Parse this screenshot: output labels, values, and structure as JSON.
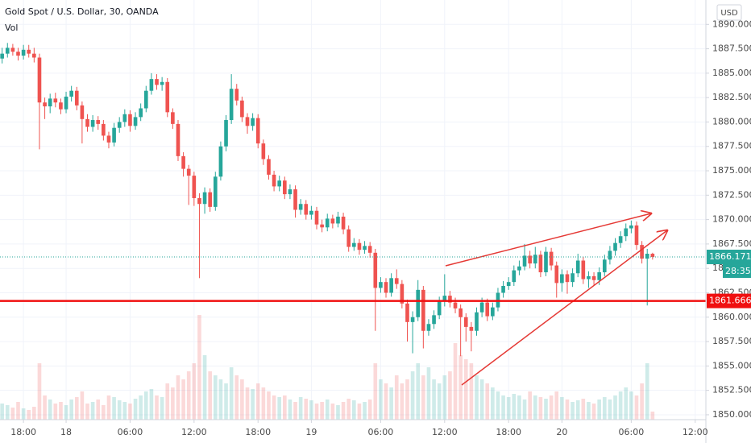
{
  "chart_data": {
    "type": "candlestick",
    "title": "Gold Spot / U.S. Dollar, 30, OANDA",
    "volume_label": "Vol",
    "currency": "USD",
    "up_color": "#26a69a",
    "down_color": "#ef5350",
    "hline": 1861.666,
    "last_price": 1866.171,
    "countdown": "28:35",
    "grid": true,
    "xlim": [
      -4.4,
      128
    ],
    "ylim": [
      1849.5,
      1892.5
    ],
    "xticks": [
      {
        "value": 0,
        "label": "18:00"
      },
      {
        "value": 8,
        "label": "18"
      },
      {
        "value": 20,
        "label": "06:00"
      },
      {
        "value": 32,
        "label": "12:00"
      },
      {
        "value": 44,
        "label": "18:00"
      },
      {
        "value": 54,
        "label": "19"
      },
      {
        "value": 67,
        "label": "06:00"
      },
      {
        "value": 79,
        "label": "12:00"
      },
      {
        "value": 91,
        "label": "18:00"
      },
      {
        "value": 101,
        "label": "20"
      },
      {
        "value": 114,
        "label": "06:00"
      },
      {
        "value": 126,
        "label": "12:00"
      }
    ],
    "yticks": [
      {
        "value": 1850,
        "label": "1850.000"
      },
      {
        "value": 1852.5,
        "label": "1852.500"
      },
      {
        "value": 1855,
        "label": "1855.000"
      },
      {
        "value": 1857.5,
        "label": "1857.500"
      },
      {
        "value": 1860,
        "label": "1860.000"
      },
      {
        "value": 1862.5,
        "label": "1862.500"
      },
      {
        "value": 1865,
        "label": "1865.000"
      },
      {
        "value": 1867.5,
        "label": "1867.500"
      },
      {
        "value": 1870,
        "label": "1870.000"
      },
      {
        "value": 1872.5,
        "label": "1872.500"
      },
      {
        "value": 1875,
        "label": "1875.000"
      },
      {
        "value": 1877.5,
        "label": "1877.500"
      },
      {
        "value": 1880,
        "label": "1880.000"
      },
      {
        "value": 1882.5,
        "label": "1882.500"
      },
      {
        "value": 1885,
        "label": "1885.000"
      },
      {
        "value": 1887.5,
        "label": "1887.500"
      },
      {
        "value": 1890,
        "label": "1890.000"
      }
    ],
    "x": [
      -4,
      -3,
      -2,
      -1,
      0,
      1,
      2,
      3,
      4,
      5,
      6,
      7,
      8,
      9,
      10,
      11,
      12,
      13,
      14,
      15,
      16,
      17,
      18,
      19,
      20,
      21,
      22,
      23,
      24,
      25,
      26,
      27,
      28,
      29,
      30,
      31,
      32,
      33,
      34,
      35,
      36,
      37,
      38,
      39,
      40,
      41,
      42,
      43,
      44,
      45,
      46,
      47,
      48,
      49,
      50,
      51,
      52,
      53,
      54,
      55,
      56,
      57,
      58,
      59,
      60,
      61,
      62,
      63,
      64,
      65,
      66,
      67,
      68,
      69,
      70,
      71,
      72,
      73,
      74,
      75,
      76,
      77,
      78,
      79,
      80,
      81,
      82,
      83,
      84,
      85,
      86,
      87,
      88,
      89,
      90,
      91,
      92,
      93,
      94,
      95,
      96,
      97,
      98,
      99,
      100,
      101,
      102,
      103,
      104,
      105,
      106,
      107,
      108,
      109,
      110,
      111,
      112,
      113,
      114,
      115,
      116,
      117,
      118
    ],
    "open": [
      1886.5,
      1887.0,
      1887.6,
      1887.2,
      1886.8,
      1887.4,
      1887.0,
      1886.6,
      1882.0,
      1881.6,
      1882.4,
      1882.0,
      1881.3,
      1882.6,
      1883.2,
      1881.7,
      1880.3,
      1879.5,
      1880.2,
      1879.8,
      1878.6,
      1877.9,
      1879.4,
      1880.0,
      1880.8,
      1879.6,
      1880.5,
      1881.4,
      1883.2,
      1884.4,
      1883.8,
      1884.1,
      1881.0,
      1879.8,
      1876.5,
      1875.2,
      1874.5,
      1872.2,
      1871.6,
      1872.8,
      1871.3,
      1874.4,
      1877.5,
      1880.2,
      1883.4,
      1882.2,
      1880.5,
      1879.6,
      1880.4,
      1877.8,
      1876.2,
      1874.6,
      1873.4,
      1874.0,
      1872.6,
      1873.1,
      1871.0,
      1871.6,
      1870.5,
      1870.9,
      1869.5,
      1869.2,
      1870.1,
      1869.6,
      1870.3,
      1869.0,
      1867.2,
      1867.6,
      1866.9,
      1867.3,
      1866.6,
      1863.0,
      1863.6,
      1862.5,
      1864.0,
      1863.4,
      1861.4,
      1859.5,
      1860.0,
      1862.8,
      1858.6,
      1859.3,
      1860.2,
      1861.6,
      1862.2,
      1861.5,
      1860.9,
      1860.0,
      1859.0,
      1858.6,
      1860.5,
      1861.5,
      1860.1,
      1861.0,
      1862.5,
      1863.2,
      1863.6,
      1864.8,
      1865.2,
      1866.3,
      1865.5,
      1866.4,
      1864.6,
      1866.7,
      1865.3,
      1863.5,
      1864.4,
      1863.6,
      1864.5,
      1865.8,
      1863.9,
      1864.2,
      1863.8,
      1864.6,
      1865.9,
      1866.8,
      1867.6,
      1868.3,
      1869.1,
      1869.4,
      1867.4,
      1866.0,
      1866.5
    ],
    "high": [
      1887.6,
      1888.1,
      1888.0,
      1887.6,
      1887.9,
      1887.9,
      1887.6,
      1887.0,
      1882.5,
      1882.9,
      1883.0,
      1882.4,
      1883.1,
      1883.7,
      1883.6,
      1882.1,
      1880.8,
      1880.7,
      1880.6,
      1880.2,
      1879.0,
      1879.9,
      1880.5,
      1881.3,
      1881.2,
      1881.0,
      1881.9,
      1883.7,
      1885.0,
      1884.9,
      1884.6,
      1884.5,
      1881.4,
      1880.2,
      1876.9,
      1875.6,
      1874.9,
      1872.7,
      1873.3,
      1873.2,
      1874.9,
      1878.0,
      1880.7,
      1884.9,
      1883.9,
      1882.6,
      1880.9,
      1880.9,
      1880.8,
      1878.2,
      1876.6,
      1875.0,
      1874.5,
      1874.4,
      1873.6,
      1873.5,
      1872.1,
      1872.0,
      1871.4,
      1871.3,
      1870.0,
      1870.6,
      1870.5,
      1870.8,
      1870.7,
      1869.4,
      1868.1,
      1868.0,
      1867.8,
      1867.7,
      1867.0,
      1864.1,
      1864.0,
      1864.5,
      1864.9,
      1863.8,
      1861.8,
      1860.6,
      1863.8,
      1863.2,
      1859.8,
      1860.7,
      1862.1,
      1864.4,
      1862.7,
      1862.0,
      1861.3,
      1860.4,
      1859.5,
      1861.0,
      1862.0,
      1861.9,
      1861.5,
      1863.0,
      1863.7,
      1864.1,
      1865.3,
      1865.8,
      1867.5,
      1866.8,
      1867.2,
      1866.8,
      1867.2,
      1867.1,
      1865.7,
      1864.9,
      1864.8,
      1865.0,
      1866.5,
      1866.2,
      1864.7,
      1864.6,
      1865.1,
      1866.4,
      1867.3,
      1868.1,
      1868.8,
      1869.6,
      1869.9,
      1869.8,
      1867.8,
      1867.0,
      1866.6
    ],
    "low": [
      1886.0,
      1886.6,
      1886.8,
      1886.3,
      1886.4,
      1886.6,
      1886.1,
      1877.2,
      1880.3,
      1880.9,
      1881.5,
      1880.8,
      1880.9,
      1882.1,
      1881.2,
      1877.8,
      1879.0,
      1879.0,
      1879.2,
      1878.1,
      1877.3,
      1877.5,
      1878.9,
      1879.5,
      1879.0,
      1879.2,
      1880.1,
      1881.0,
      1882.8,
      1883.3,
      1883.2,
      1880.5,
      1879.3,
      1876.0,
      1874.4,
      1871.5,
      1871.4,
      1864.0,
      1870.6,
      1870.8,
      1870.9,
      1874.0,
      1877.0,
      1879.8,
      1881.7,
      1880.0,
      1878.8,
      1879.1,
      1877.3,
      1875.6,
      1874.1,
      1872.9,
      1872.9,
      1872.1,
      1872.1,
      1870.2,
      1870.5,
      1870.0,
      1870.0,
      1869.0,
      1868.7,
      1868.8,
      1869.1,
      1869.2,
      1868.5,
      1866.7,
      1866.8,
      1866.4,
      1866.5,
      1866.1,
      1858.6,
      1862.5,
      1862.0,
      1862.1,
      1862.9,
      1860.9,
      1857.5,
      1856.3,
      1859.6,
      1856.8,
      1858.1,
      1858.8,
      1859.8,
      1861.1,
      1861.0,
      1860.4,
      1856.0,
      1857.5,
      1856.5,
      1858.1,
      1860.0,
      1859.6,
      1859.7,
      1860.6,
      1862.0,
      1862.8,
      1863.2,
      1864.3,
      1864.8,
      1865.0,
      1865.0,
      1864.1,
      1864.2,
      1864.8,
      1862.0,
      1862.6,
      1862.4,
      1863.1,
      1864.1,
      1863.4,
      1863.0,
      1863.3,
      1863.3,
      1864.2,
      1865.4,
      1866.3,
      1867.1,
      1867.8,
      1868.6,
      1866.9,
      1865.5,
      1861.2,
      1865.9
    ],
    "close": [
      1887.0,
      1887.6,
      1887.2,
      1886.8,
      1887.4,
      1887.0,
      1886.6,
      1882.0,
      1881.6,
      1882.4,
      1882.0,
      1881.3,
      1882.6,
      1883.2,
      1881.7,
      1880.3,
      1879.5,
      1880.2,
      1879.8,
      1878.6,
      1877.9,
      1879.4,
      1880.0,
      1880.8,
      1879.6,
      1880.5,
      1881.4,
      1883.2,
      1884.4,
      1883.8,
      1884.1,
      1881.0,
      1879.8,
      1876.5,
      1875.2,
      1874.5,
      1872.2,
      1871.6,
      1872.8,
      1871.3,
      1874.4,
      1877.5,
      1880.2,
      1883.4,
      1882.2,
      1880.5,
      1879.6,
      1880.4,
      1877.8,
      1876.2,
      1874.6,
      1873.4,
      1874.0,
      1872.6,
      1873.1,
      1871.0,
      1871.6,
      1870.5,
      1870.9,
      1869.5,
      1869.2,
      1870.1,
      1869.6,
      1870.3,
      1869.0,
      1867.2,
      1867.6,
      1866.9,
      1867.3,
      1866.6,
      1863.0,
      1863.6,
      1862.5,
      1864.0,
      1863.4,
      1861.4,
      1859.5,
      1860.0,
      1862.8,
      1858.6,
      1859.3,
      1860.2,
      1861.6,
      1862.2,
      1861.5,
      1860.9,
      1860.0,
      1859.0,
      1858.6,
      1860.5,
      1861.5,
      1860.1,
      1861.0,
      1862.5,
      1863.2,
      1863.6,
      1864.8,
      1865.2,
      1866.3,
      1865.5,
      1866.4,
      1864.6,
      1866.7,
      1865.3,
      1863.5,
      1864.4,
      1863.6,
      1864.5,
      1865.8,
      1863.9,
      1864.2,
      1863.8,
      1864.6,
      1865.9,
      1866.8,
      1867.6,
      1868.3,
      1869.1,
      1869.4,
      1867.4,
      1866.0,
      1866.5,
      1866.171
    ],
    "volume": [
      20,
      18,
      15,
      22,
      14,
      12,
      16,
      70,
      30,
      25,
      20,
      22,
      18,
      25,
      28,
      35,
      20,
      22,
      25,
      18,
      30,
      28,
      24,
      22,
      20,
      26,
      30,
      35,
      38,
      30,
      28,
      45,
      40,
      55,
      50,
      60,
      70,
      130,
      80,
      60,
      55,
      50,
      45,
      65,
      55,
      50,
      40,
      38,
      45,
      40,
      35,
      30,
      28,
      30,
      25,
      22,
      28,
      26,
      24,
      20,
      22,
      25,
      20,
      18,
      22,
      26,
      24,
      20,
      22,
      25,
      70,
      50,
      45,
      40,
      55,
      45,
      50,
      60,
      70,
      55,
      65,
      50,
      45,
      55,
      60,
      95,
      80,
      75,
      70,
      55,
      50,
      45,
      40,
      35,
      30,
      28,
      32,
      30,
      25,
      35,
      30,
      28,
      26,
      30,
      35,
      28,
      25,
      22,
      24,
      26,
      22,
      20,
      25,
      28,
      25,
      30,
      35,
      40,
      35,
      30,
      45,
      70,
      10
    ]
  }
}
